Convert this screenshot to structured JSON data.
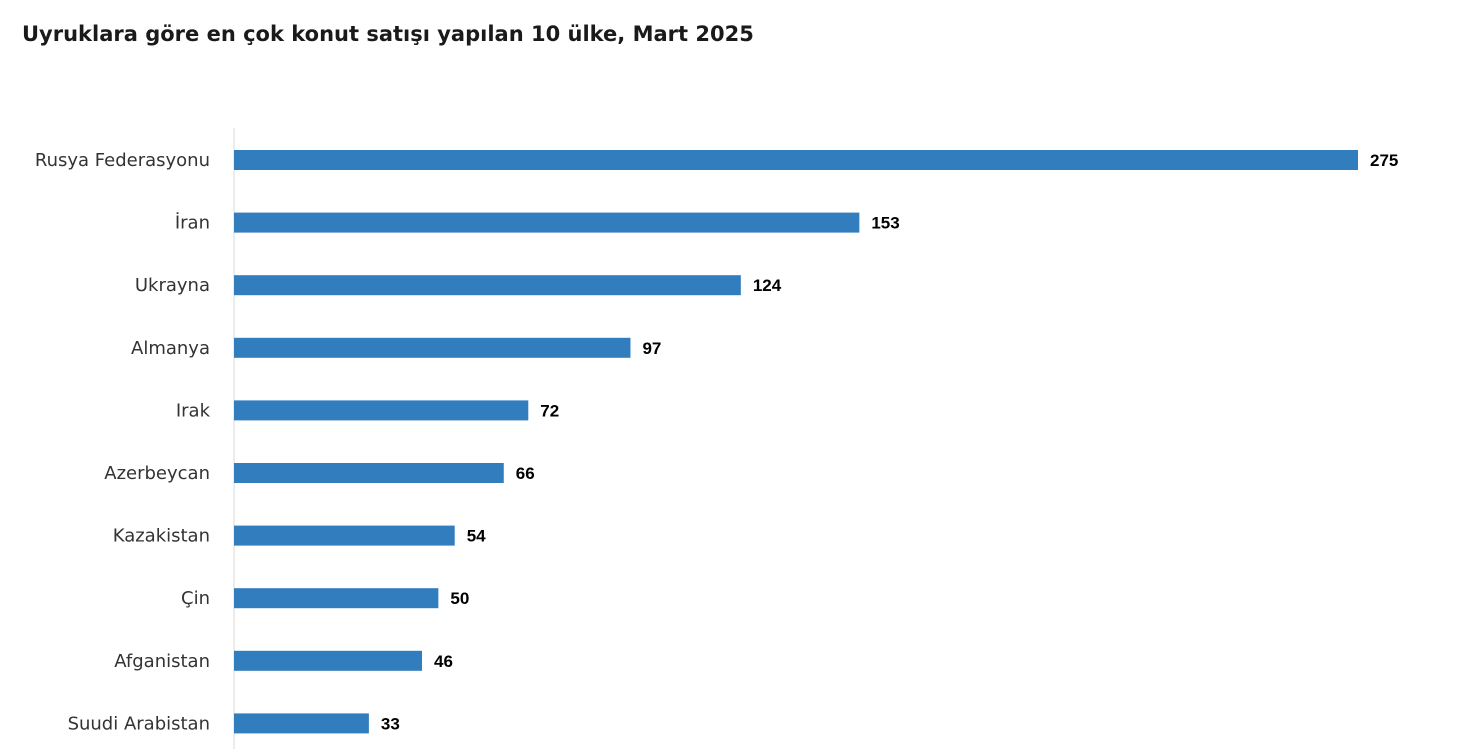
{
  "chart_data": {
    "type": "bar",
    "orientation": "horizontal",
    "title": "Uyruklara göre en çok konut satışı yapılan 10 ülke, Mart 2025",
    "categories": [
      "Rusya Federasyonu",
      "İran",
      "Ukrayna",
      "Almanya",
      "Irak",
      "Azerbeycan",
      "Kazakistan",
      "Çin",
      "Afganistan",
      "Suudi Arabistan"
    ],
    "values": [
      275,
      153,
      124,
      97,
      72,
      66,
      54,
      50,
      46,
      33
    ],
    "value_labels": [
      "275",
      "153",
      "124",
      "97",
      "72",
      "66",
      "54",
      "50",
      "46",
      "33"
    ],
    "xlabel": "",
    "ylabel": "",
    "xlim": [
      0,
      275
    ],
    "grid": false,
    "legend": "none",
    "bar_color": "#317dbd",
    "axis_color": "#d9d9d9"
  }
}
